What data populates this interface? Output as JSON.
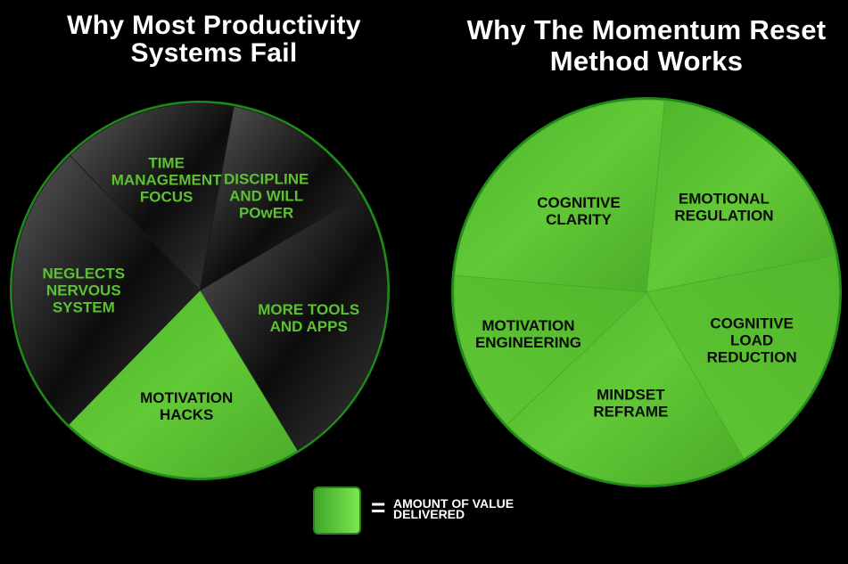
{
  "chart_data": [
    {
      "type": "pie",
      "title": "Why Most Productivity Systems Fail",
      "start_angle_deg": 10.5,
      "slices": [
        {
          "label": "DISCIPLINE AND WILL POwER",
          "value": 13.6,
          "highlighted": false
        },
        {
          "label": "MORE TOOLS AND APPS",
          "value": 24.8,
          "highlighted": false
        },
        {
          "label": "MOTIVATION HACKS",
          "value": 21.0,
          "highlighted": true
        },
        {
          "label": "NEGLECTS NERVOUS SYSTEM",
          "value": 25.5,
          "highlighted": false
        },
        {
          "label": "TIME MANAGEMENT FOCUS",
          "value": 15.1,
          "highlighted": false
        }
      ]
    },
    {
      "type": "pie",
      "title": "Why The Momentum Reset Method Works",
      "start_angle_deg": 5.4,
      "slices": [
        {
          "label": "EMOTIONAL REGULATION",
          "value": 20.4,
          "highlighted": true
        },
        {
          "label": "COGNITIVE LOAD REDUCTION",
          "value": 19.7,
          "highlighted": true
        },
        {
          "label": "MINDSET REFRAME",
          "value": 21.3,
          "highlighted": true
        },
        {
          "label": "MOTIVATION ENGINEERING",
          "value": 13.5,
          "highlighted": true
        },
        {
          "label": "COGNITIVE CLARITY",
          "value": 25.1,
          "highlighted": true
        }
      ]
    }
  ],
  "titles": {
    "left": "Why Most Productivity Systems Fail",
    "right": "Why The Momentum Reset Method Works"
  },
  "legend": {
    "symbol": "=",
    "text": "AMOUNT OF VALUE DELIVERED"
  },
  "colors": {
    "background": "#000000",
    "highlight": "#5cc232",
    "dark_slice": "#2a2a2a",
    "rim": "#1f8a1a",
    "label_green": "#5cc232",
    "label_dark": "#0a0a0a"
  }
}
